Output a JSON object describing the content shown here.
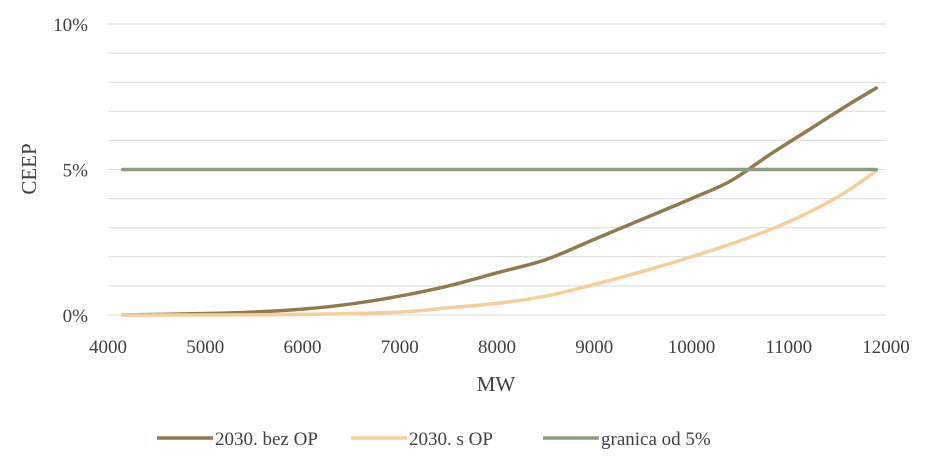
{
  "chart_data": {
    "type": "line",
    "xlabel": "MW",
    "ylabel": "CEEP",
    "xlim": [
      4000,
      12000
    ],
    "ylim": [
      0,
      10
    ],
    "x_ticks": [
      "4000",
      "5000",
      "6000",
      "7000",
      "8000",
      "9000",
      "10000",
      "11000",
      "12000"
    ],
    "y_ticks": [
      "0%",
      "5%",
      "10%"
    ],
    "y_gridlines": [
      0,
      1,
      2,
      3,
      4,
      5,
      6,
      7,
      8,
      9,
      10
    ],
    "grid": true,
    "legend_position": "bottom",
    "series": [
      {
        "name": "2030. bez OP",
        "color": "#937A4E",
        "x": [
          4150,
          5000,
          5500,
          6000,
          6500,
          7000,
          7500,
          8000,
          8500,
          9000,
          9500,
          10000,
          10400,
          10800,
          11200,
          11600,
          11900
        ],
        "values": [
          0.0,
          0.05,
          0.1,
          0.2,
          0.38,
          0.65,
          1.0,
          1.45,
          1.9,
          2.6,
          3.3,
          4.0,
          4.6,
          5.5,
          6.35,
          7.2,
          7.8
        ]
      },
      {
        "name": "2030. s OP",
        "color": "#F7CE97",
        "x": [
          4150,
          5000,
          6000,
          7000,
          7500,
          8000,
          8500,
          9000,
          9500,
          10000,
          10500,
          11000,
          11500,
          11900
        ],
        "values": [
          0.0,
          0.0,
          0.02,
          0.1,
          0.25,
          0.4,
          0.65,
          1.05,
          1.5,
          2.0,
          2.55,
          3.2,
          4.05,
          4.95
        ]
      },
      {
        "name": "granica od 5%",
        "color": "#8C9E82",
        "x": [
          4150,
          11900
        ],
        "values": [
          5,
          5
        ]
      }
    ]
  }
}
